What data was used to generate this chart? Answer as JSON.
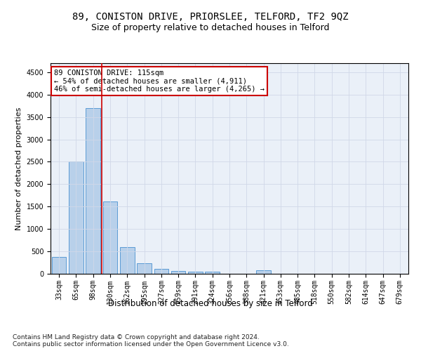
{
  "title": "89, CONISTON DRIVE, PRIORSLEE, TELFORD, TF2 9QZ",
  "subtitle": "Size of property relative to detached houses in Telford",
  "xlabel": "Distribution of detached houses by size in Telford",
  "ylabel": "Number of detached properties",
  "categories": [
    "33sqm",
    "65sqm",
    "98sqm",
    "130sqm",
    "162sqm",
    "195sqm",
    "227sqm",
    "259sqm",
    "291sqm",
    "324sqm",
    "356sqm",
    "388sqm",
    "421sqm",
    "453sqm",
    "485sqm",
    "518sqm",
    "550sqm",
    "582sqm",
    "614sqm",
    "647sqm",
    "679sqm"
  ],
  "values": [
    380,
    2500,
    3700,
    1620,
    600,
    240,
    110,
    65,
    50,
    45,
    0,
    0,
    75,
    0,
    0,
    0,
    0,
    0,
    0,
    0,
    0
  ],
  "bar_color": "#b8d0ea",
  "bar_edge_color": "#5b9bd5",
  "vline_x": 2.5,
  "vline_color": "#cc0000",
  "annotation_text": "89 CONISTON DRIVE: 115sqm\n← 54% of detached houses are smaller (4,911)\n46% of semi-detached houses are larger (4,265) →",
  "annotation_box_color": "#ffffff",
  "annotation_box_edge": "#cc0000",
  "ylim": [
    0,
    4700
  ],
  "yticks": [
    0,
    500,
    1000,
    1500,
    2000,
    2500,
    3000,
    3500,
    4000,
    4500
  ],
  "grid_color": "#d0d8e8",
  "background_color": "#eaf0f8",
  "footer": "Contains HM Land Registry data © Crown copyright and database right 2024.\nContains public sector information licensed under the Open Government Licence v3.0.",
  "title_fontsize": 10,
  "subtitle_fontsize": 9,
  "xlabel_fontsize": 8.5,
  "ylabel_fontsize": 8,
  "tick_fontsize": 7,
  "annotation_fontsize": 7.5,
  "footer_fontsize": 6.5
}
